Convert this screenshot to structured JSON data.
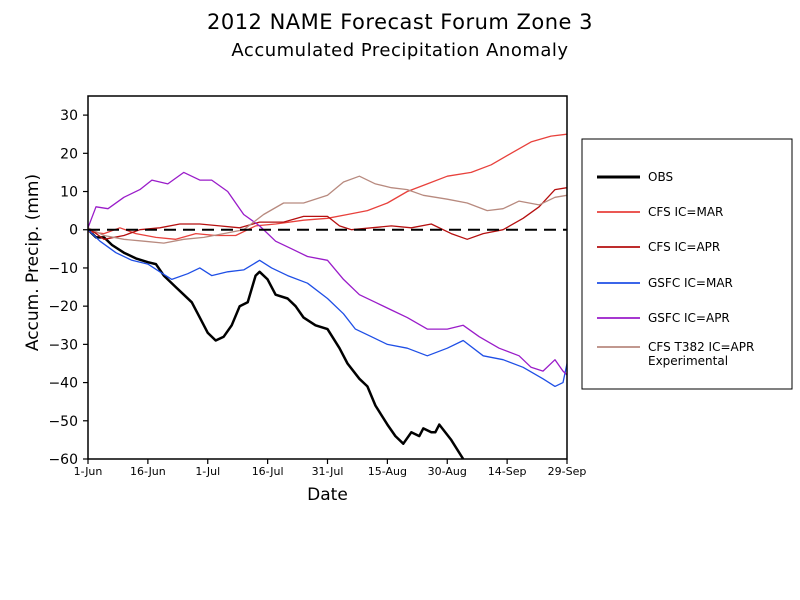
{
  "chart_data": {
    "type": "line",
    "title": "2012 NAME Forecast Forum Zone 3",
    "subtitle": "Accumulated Precipitation Anomaly",
    "xlabel": "Date",
    "ylabel": "Accum. Precip. (mm)",
    "ylim": [
      -60,
      35
    ],
    "yticks": [
      30,
      20,
      10,
      0,
      -10,
      -20,
      -30,
      -40,
      -50,
      -60
    ],
    "ytick_labels": [
      "30",
      "20",
      "10",
      "0",
      "−10",
      "−20",
      "−30",
      "−40",
      "−50",
      "−60"
    ],
    "xlim": [
      "2012-06-01",
      "2012-09-29"
    ],
    "xticks": [
      "2012-06-01",
      "2012-06-16",
      "2012-07-01",
      "2012-07-16",
      "2012-07-31",
      "2012-08-15",
      "2012-08-30",
      "2012-09-14",
      "2012-09-29"
    ],
    "xtick_labels": [
      "1-Jun",
      "16-Jun",
      "1-Jul",
      "16-Jul",
      "31-Jul",
      "15-Aug",
      "30-Aug",
      "14-Sep",
      "29-Sep"
    ],
    "zero_line": "dashed",
    "grid": false,
    "legend_position": "right",
    "series": [
      {
        "name": "OBS",
        "color": "#000000",
        "width": 2.5,
        "points": [
          [
            "2012-06-01",
            0
          ],
          [
            "2012-06-03",
            -2
          ],
          [
            "2012-06-05",
            -2
          ],
          [
            "2012-06-07",
            -4
          ],
          [
            "2012-06-10",
            -6
          ],
          [
            "2012-06-13",
            -7.5
          ],
          [
            "2012-06-16",
            -8.5
          ],
          [
            "2012-06-18",
            -9
          ],
          [
            "2012-06-20",
            -12
          ],
          [
            "2012-06-23",
            -15
          ],
          [
            "2012-06-25",
            -17
          ],
          [
            "2012-06-27",
            -19
          ],
          [
            "2012-06-29",
            -23
          ],
          [
            "2012-07-01",
            -27
          ],
          [
            "2012-07-03",
            -29
          ],
          [
            "2012-07-05",
            -28
          ],
          [
            "2012-07-07",
            -25
          ],
          [
            "2012-07-09",
            -20
          ],
          [
            "2012-07-11",
            -19
          ],
          [
            "2012-07-13",
            -12
          ],
          [
            "2012-07-14",
            -11
          ],
          [
            "2012-07-16",
            -13
          ],
          [
            "2012-07-18",
            -17
          ],
          [
            "2012-07-21",
            -18
          ],
          [
            "2012-07-23",
            -20
          ],
          [
            "2012-07-25",
            -23
          ],
          [
            "2012-07-28",
            -25
          ],
          [
            "2012-07-31",
            -26
          ],
          [
            "2012-08-03",
            -31
          ],
          [
            "2012-08-05",
            -35
          ],
          [
            "2012-08-08",
            -39
          ],
          [
            "2012-08-10",
            -41
          ],
          [
            "2012-08-12",
            -46
          ],
          [
            "2012-08-15",
            -51
          ],
          [
            "2012-08-17",
            -54
          ],
          [
            "2012-08-19",
            -56
          ],
          [
            "2012-08-21",
            -53
          ],
          [
            "2012-08-23",
            -54
          ],
          [
            "2012-08-24",
            -52
          ],
          [
            "2012-08-26",
            -53
          ],
          [
            "2012-08-27",
            -53
          ],
          [
            "2012-08-28",
            -51
          ],
          [
            "2012-08-31",
            -55
          ],
          [
            "2012-09-03",
            -60
          ]
        ]
      },
      {
        "name": "CFS IC=MAR",
        "color": "#e8413c",
        "width": 1.3,
        "points": [
          [
            "2012-06-01",
            -0.5
          ],
          [
            "2012-06-05",
            -1
          ],
          [
            "2012-06-09",
            0.5
          ],
          [
            "2012-06-13",
            -1
          ],
          [
            "2012-06-18",
            -2
          ],
          [
            "2012-06-23",
            -2.5
          ],
          [
            "2012-06-28",
            -1
          ],
          [
            "2012-07-03",
            -1.5
          ],
          [
            "2012-07-08",
            -1.5
          ],
          [
            "2012-07-13",
            1
          ],
          [
            "2012-07-18",
            1.5
          ],
          [
            "2012-07-25",
            2.5
          ],
          [
            "2012-07-31",
            3
          ],
          [
            "2012-08-05",
            4
          ],
          [
            "2012-08-10",
            5
          ],
          [
            "2012-08-15",
            7
          ],
          [
            "2012-08-20",
            10
          ],
          [
            "2012-08-25",
            12
          ],
          [
            "2012-08-30",
            14
          ],
          [
            "2012-09-05",
            15
          ],
          [
            "2012-09-10",
            17
          ],
          [
            "2012-09-15",
            20
          ],
          [
            "2012-09-20",
            23
          ],
          [
            "2012-09-25",
            24.5
          ],
          [
            "2012-09-29",
            25
          ]
        ]
      },
      {
        "name": "CFS IC=APR",
        "color": "#b50f0f",
        "width": 1.3,
        "points": [
          [
            "2012-06-01",
            0.5
          ],
          [
            "2012-06-05",
            -2.5
          ],
          [
            "2012-06-10",
            -1.5
          ],
          [
            "2012-06-14",
            0
          ],
          [
            "2012-06-19",
            0.5
          ],
          [
            "2012-06-24",
            1.5
          ],
          [
            "2012-06-29",
            1.5
          ],
          [
            "2012-07-04",
            1
          ],
          [
            "2012-07-09",
            0.5
          ],
          [
            "2012-07-14",
            2
          ],
          [
            "2012-07-20",
            2
          ],
          [
            "2012-07-25",
            3.5
          ],
          [
            "2012-07-31",
            3.5
          ],
          [
            "2012-08-03",
            1
          ],
          [
            "2012-08-06",
            0
          ],
          [
            "2012-08-11",
            0.5
          ],
          [
            "2012-08-16",
            1
          ],
          [
            "2012-08-21",
            0.5
          ],
          [
            "2012-08-26",
            1.5
          ],
          [
            "2012-08-31",
            -1
          ],
          [
            "2012-09-04",
            -2.5
          ],
          [
            "2012-09-08",
            -1
          ],
          [
            "2012-09-13",
            0
          ],
          [
            "2012-09-18",
            3
          ],
          [
            "2012-09-22",
            6
          ],
          [
            "2012-09-26",
            10.5
          ],
          [
            "2012-09-29",
            11
          ]
        ]
      },
      {
        "name": "GSFC IC=MAR",
        "color": "#1f4fe6",
        "width": 1.3,
        "points": [
          [
            "2012-06-01",
            0
          ],
          [
            "2012-06-04",
            -3
          ],
          [
            "2012-06-08",
            -6
          ],
          [
            "2012-06-12",
            -8
          ],
          [
            "2012-06-16",
            -9
          ],
          [
            "2012-06-19",
            -11
          ],
          [
            "2012-06-22",
            -13
          ],
          [
            "2012-06-26",
            -11.5
          ],
          [
            "2012-06-29",
            -10
          ],
          [
            "2012-07-02",
            -12
          ],
          [
            "2012-07-06",
            -11
          ],
          [
            "2012-07-10",
            -10.5
          ],
          [
            "2012-07-14",
            -8
          ],
          [
            "2012-07-17",
            -10
          ],
          [
            "2012-07-21",
            -12
          ],
          [
            "2012-07-26",
            -14
          ],
          [
            "2012-07-31",
            -18
          ],
          [
            "2012-08-04",
            -22
          ],
          [
            "2012-08-07",
            -26
          ],
          [
            "2012-08-11",
            -28
          ],
          [
            "2012-08-15",
            -30
          ],
          [
            "2012-08-20",
            -31
          ],
          [
            "2012-08-25",
            -33
          ],
          [
            "2012-08-30",
            -31
          ],
          [
            "2012-09-03",
            -29
          ],
          [
            "2012-09-08",
            -33
          ],
          [
            "2012-09-13",
            -34
          ],
          [
            "2012-09-18",
            -36
          ],
          [
            "2012-09-23",
            -39
          ],
          [
            "2012-09-26",
            -41
          ],
          [
            "2012-09-28",
            -40
          ],
          [
            "2012-09-29",
            -35
          ]
        ]
      },
      {
        "name": "GSFC IC=APR",
        "color": "#9a1cc9",
        "width": 1.3,
        "points": [
          [
            "2012-06-01",
            0.5
          ],
          [
            "2012-06-03",
            6
          ],
          [
            "2012-06-06",
            5.5
          ],
          [
            "2012-06-10",
            8.5
          ],
          [
            "2012-06-14",
            10.5
          ],
          [
            "2012-06-17",
            13
          ],
          [
            "2012-06-21",
            12
          ],
          [
            "2012-06-25",
            15
          ],
          [
            "2012-06-29",
            13
          ],
          [
            "2012-07-02",
            13
          ],
          [
            "2012-07-06",
            10
          ],
          [
            "2012-07-10",
            4
          ],
          [
            "2012-07-14",
            1
          ],
          [
            "2012-07-18",
            -3
          ],
          [
            "2012-07-22",
            -5
          ],
          [
            "2012-07-26",
            -7
          ],
          [
            "2012-07-31",
            -8
          ],
          [
            "2012-08-04",
            -13
          ],
          [
            "2012-08-08",
            -17
          ],
          [
            "2012-08-12",
            -19
          ],
          [
            "2012-08-16",
            -21
          ],
          [
            "2012-08-20",
            -23
          ],
          [
            "2012-08-25",
            -26
          ],
          [
            "2012-08-30",
            -26
          ],
          [
            "2012-09-03",
            -25
          ],
          [
            "2012-09-07",
            -28
          ],
          [
            "2012-09-12",
            -31
          ],
          [
            "2012-09-17",
            -33
          ],
          [
            "2012-09-20",
            -36
          ],
          [
            "2012-09-23",
            -37
          ],
          [
            "2012-09-26",
            -34
          ],
          [
            "2012-09-28",
            -37
          ],
          [
            "2012-09-29",
            -38
          ]
        ]
      },
      {
        "name": "CFS T382 IC=APR\nExperimental",
        "label_lines": [
          "CFS T382 IC=APR",
          "Experimental"
        ],
        "color": "#b88a7f",
        "width": 1.3,
        "points": [
          [
            "2012-06-01",
            0.5
          ],
          [
            "2012-06-05",
            -1.5
          ],
          [
            "2012-06-10",
            -2.5
          ],
          [
            "2012-06-15",
            -3
          ],
          [
            "2012-06-20",
            -3.5
          ],
          [
            "2012-06-25",
            -2.5
          ],
          [
            "2012-06-30",
            -2
          ],
          [
            "2012-07-05",
            -1
          ],
          [
            "2012-07-10",
            0
          ],
          [
            "2012-07-15",
            4
          ],
          [
            "2012-07-20",
            7
          ],
          [
            "2012-07-25",
            7
          ],
          [
            "2012-07-31",
            9
          ],
          [
            "2012-08-04",
            12.5
          ],
          [
            "2012-08-08",
            14
          ],
          [
            "2012-08-12",
            12
          ],
          [
            "2012-08-16",
            11
          ],
          [
            "2012-08-20",
            10.5
          ],
          [
            "2012-08-24",
            9
          ],
          [
            "2012-08-30",
            8
          ],
          [
            "2012-09-04",
            7
          ],
          [
            "2012-09-09",
            5
          ],
          [
            "2012-09-13",
            5.5
          ],
          [
            "2012-09-17",
            7.5
          ],
          [
            "2012-09-22",
            6.5
          ],
          [
            "2012-09-26",
            8.5
          ],
          [
            "2012-09-29",
            9
          ]
        ]
      }
    ]
  }
}
